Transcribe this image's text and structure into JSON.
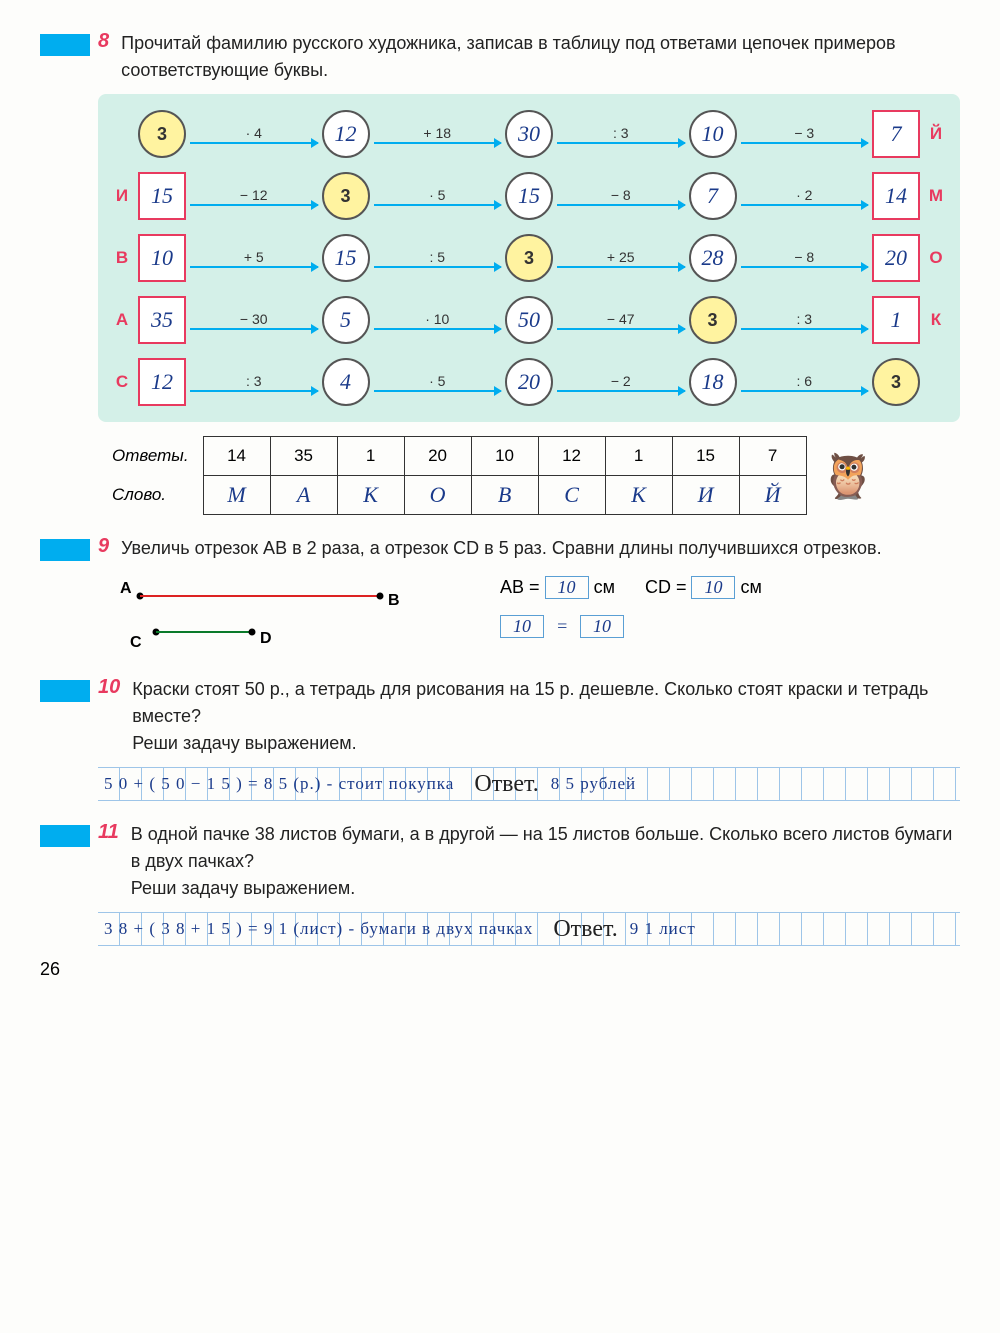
{
  "page_number": "26",
  "colors": {
    "accent_blue": "#00adef",
    "accent_pink": "#e83a5f",
    "chain_bg": "#d4f0e8",
    "handwriting": "#1a3a8a",
    "yellow_fill": "#fff3a0"
  },
  "task8": {
    "num": "8",
    "text": "Прочитай фамилию русского художника, записав в таблицу под ответами цепочек примеров соответствующие буквы.",
    "rows": [
      {
        "left_letter": "",
        "right_letter": "Й",
        "cells": [
          {
            "shape": "circle",
            "yellow": true,
            "val": "3"
          },
          {
            "shape": "circle",
            "val": "12"
          },
          {
            "shape": "circle",
            "val": "30"
          },
          {
            "shape": "circle",
            "val": "10"
          },
          {
            "shape": "square",
            "val": "7"
          }
        ],
        "ops": [
          "· 4",
          "+ 18",
          ": 3",
          "− 3"
        ]
      },
      {
        "left_letter": "И",
        "right_letter": "М",
        "cells": [
          {
            "shape": "square",
            "val": "15"
          },
          {
            "shape": "circle",
            "yellow": true,
            "val": "3"
          },
          {
            "shape": "circle",
            "val": "15"
          },
          {
            "shape": "circle",
            "val": "7"
          },
          {
            "shape": "square",
            "val": "14"
          }
        ],
        "ops": [
          "− 12",
          "· 5",
          "− 8",
          "· 2"
        ]
      },
      {
        "left_letter": "В",
        "right_letter": "О",
        "cells": [
          {
            "shape": "square",
            "val": "10"
          },
          {
            "shape": "circle",
            "val": "15"
          },
          {
            "shape": "circle",
            "yellow": true,
            "val": "3"
          },
          {
            "shape": "circle",
            "val": "28"
          },
          {
            "shape": "square",
            "val": "20"
          }
        ],
        "ops": [
          "+ 5",
          ": 5",
          "+ 25",
          "− 8"
        ]
      },
      {
        "left_letter": "А",
        "right_letter": "К",
        "cells": [
          {
            "shape": "square",
            "val": "35"
          },
          {
            "shape": "circle",
            "val": "5"
          },
          {
            "shape": "circle",
            "val": "50"
          },
          {
            "shape": "circle",
            "yellow": true,
            "val": "3"
          },
          {
            "shape": "square",
            "val": "1"
          }
        ],
        "ops": [
          "− 30",
          "· 10",
          "− 47",
          ": 3"
        ]
      },
      {
        "left_letter": "С",
        "right_letter": "",
        "cells": [
          {
            "shape": "square",
            "val": "12"
          },
          {
            "shape": "circle",
            "val": "4"
          },
          {
            "shape": "circle",
            "val": "20"
          },
          {
            "shape": "circle",
            "val": "18"
          },
          {
            "shape": "circle",
            "yellow": true,
            "val": "3"
          }
        ],
        "ops": [
          ": 3",
          "· 5",
          "− 2",
          ": 6"
        ]
      }
    ],
    "answers_label": "Ответы.",
    "word_label": "Слово.",
    "answers_row": [
      "14",
      "35",
      "1",
      "20",
      "10",
      "12",
      "1",
      "15",
      "7"
    ],
    "word_row": [
      "М",
      "А",
      "К",
      "О",
      "В",
      "С",
      "К",
      "И",
      "Й"
    ]
  },
  "task9": {
    "num": "9",
    "text": "Увеличь отрезок AB в 2 раза, а отрезок CD в 5 раз. Сравни длины получившихся отрезков.",
    "labels": {
      "A": "A",
      "B": "B",
      "C": "C",
      "D": "D"
    },
    "ab_eq_pre": "AB =",
    "ab_val": "10",
    "ab_unit": "см",
    "cd_eq_pre": "CD =",
    "cd_val": "10",
    "cd_unit": "см",
    "compare_left": "10",
    "compare_op": "=",
    "compare_right": "10"
  },
  "task10": {
    "num": "10",
    "text": "Краски стоят 50 р., а тетрадь для рисования на 15 р. дешевле. Сколько стоят краски и тетрадь вместе?",
    "sub": "Реши задачу выражением.",
    "work": "5 0 + ( 5 0 − 1 5 ) = 8 5 (р.) - стоит покупка",
    "ans_label": "Ответ.",
    "ans": "8 5 рублей"
  },
  "task11": {
    "num": "11",
    "text": "В одной пачке 38 листов бумаги, а в другой — на 15 листов больше. Сколько всего листов бумаги в двух пачках?",
    "sub": "Реши задачу выражением.",
    "work": "3 8 + ( 3 8 + 1 5 ) = 9 1 (лист) - бумаги в двух пачках",
    "ans_label": "Ответ.",
    "ans": "9 1 лист"
  }
}
